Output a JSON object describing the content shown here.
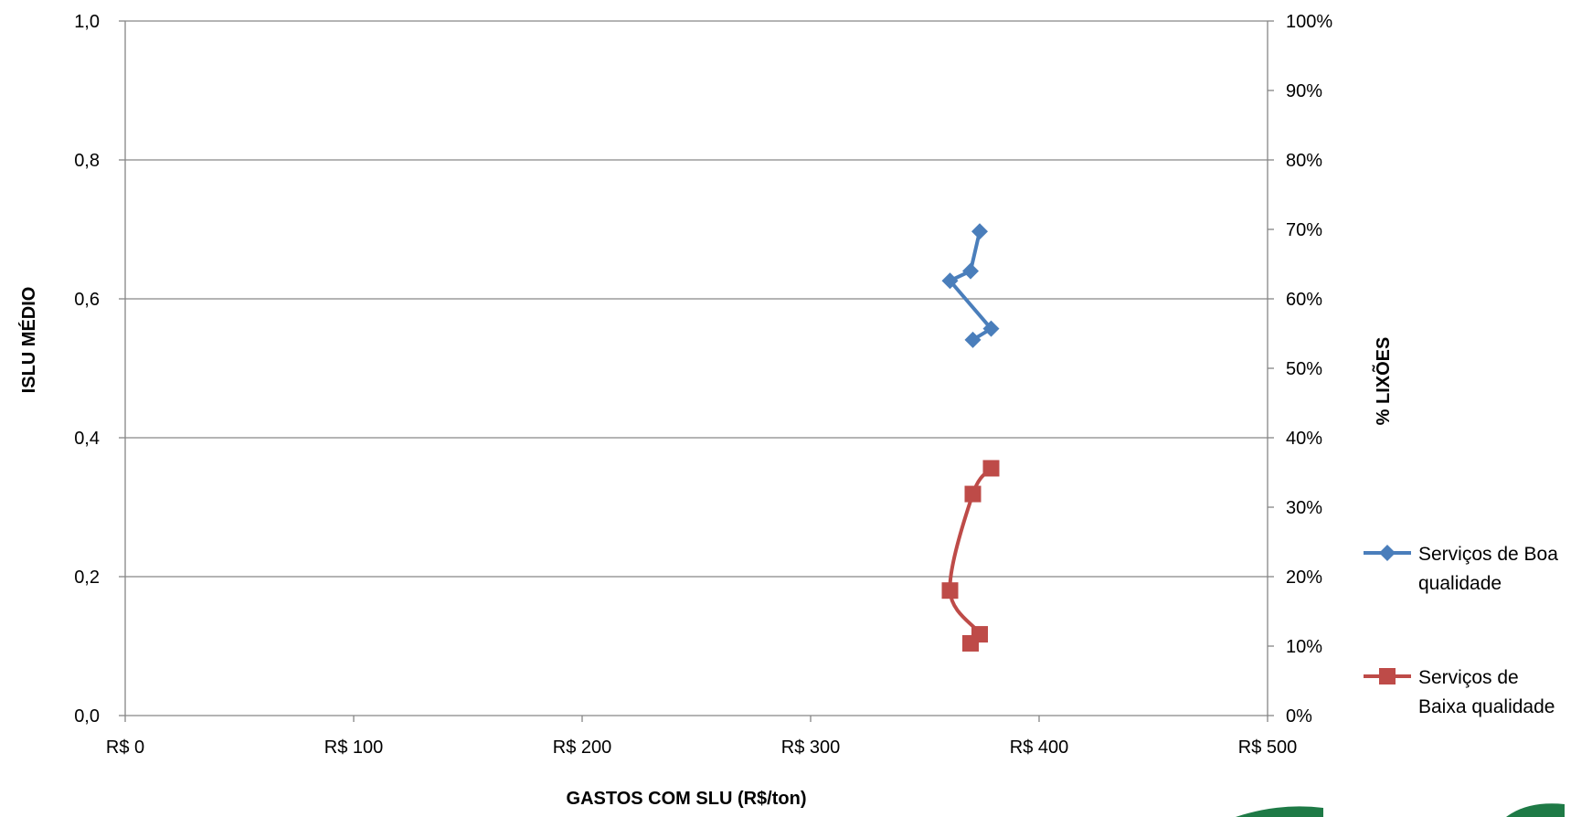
{
  "chart_data": {
    "type": "scatter",
    "title": "",
    "xlabel": "GASTOS COM SLU (R$/ton)",
    "ylabel": "ISLU MÉDIO",
    "ylabel_secondary": "% LIXÕES",
    "xlim": [
      0,
      500
    ],
    "ylim": [
      0,
      1.0
    ],
    "ylim_secondary": [
      0,
      100
    ],
    "x_ticks": [
      {
        "value": 0,
        "label": "R$ 0"
      },
      {
        "value": 100,
        "label": "R$ 100"
      },
      {
        "value": 200,
        "label": "R$ 200"
      },
      {
        "value": 300,
        "label": "R$ 300"
      },
      {
        "value": 400,
        "label": "R$ 400"
      },
      {
        "value": 500,
        "label": "R$ 500"
      }
    ],
    "y_ticks": [
      {
        "value": 0.0,
        "label": "0,0"
      },
      {
        "value": 0.2,
        "label": "0,2"
      },
      {
        "value": 0.4,
        "label": "0,4"
      },
      {
        "value": 0.6,
        "label": "0,6"
      },
      {
        "value": 0.8,
        "label": "0,8"
      },
      {
        "value": 1.0,
        "label": "1,0"
      }
    ],
    "y2_ticks": [
      {
        "value": 0,
        "label": "0%"
      },
      {
        "value": 10,
        "label": "10%"
      },
      {
        "value": 20,
        "label": "20%"
      },
      {
        "value": 30,
        "label": "30%"
      },
      {
        "value": 40,
        "label": "40%"
      },
      {
        "value": 50,
        "label": "50%"
      },
      {
        "value": 60,
        "label": "60%"
      },
      {
        "value": 70,
        "label": "70%"
      },
      {
        "value": 80,
        "label": "80%"
      },
      {
        "value": 90,
        "label": "90%"
      },
      {
        "value": 100,
        "label": "100%"
      }
    ],
    "grid": true,
    "legend_position": "right",
    "series": [
      {
        "name_lines": [
          "Serviços de Boa",
          "qualidade"
        ],
        "color": "#4A7EBB",
        "marker": "diamond",
        "smooth": false,
        "points": [
          {
            "x": 374,
            "y": 0.697
          },
          {
            "x": 370,
            "y": 0.64
          },
          {
            "x": 361,
            "y": 0.626
          },
          {
            "x": 379,
            "y": 0.557
          },
          {
            "x": 371,
            "y": 0.541
          }
        ]
      },
      {
        "name_lines": [
          "Serviços de",
          "Baixa qualidade"
        ],
        "color": "#BE4B48",
        "marker": "square",
        "smooth": true,
        "points": [
          {
            "x": 379,
            "y": 0.356
          },
          {
            "x": 371,
            "y": 0.319
          },
          {
            "x": 361,
            "y": 0.18
          },
          {
            "x": 374,
            "y": 0.117
          },
          {
            "x": 370,
            "y": 0.104
          }
        ]
      }
    ]
  }
}
